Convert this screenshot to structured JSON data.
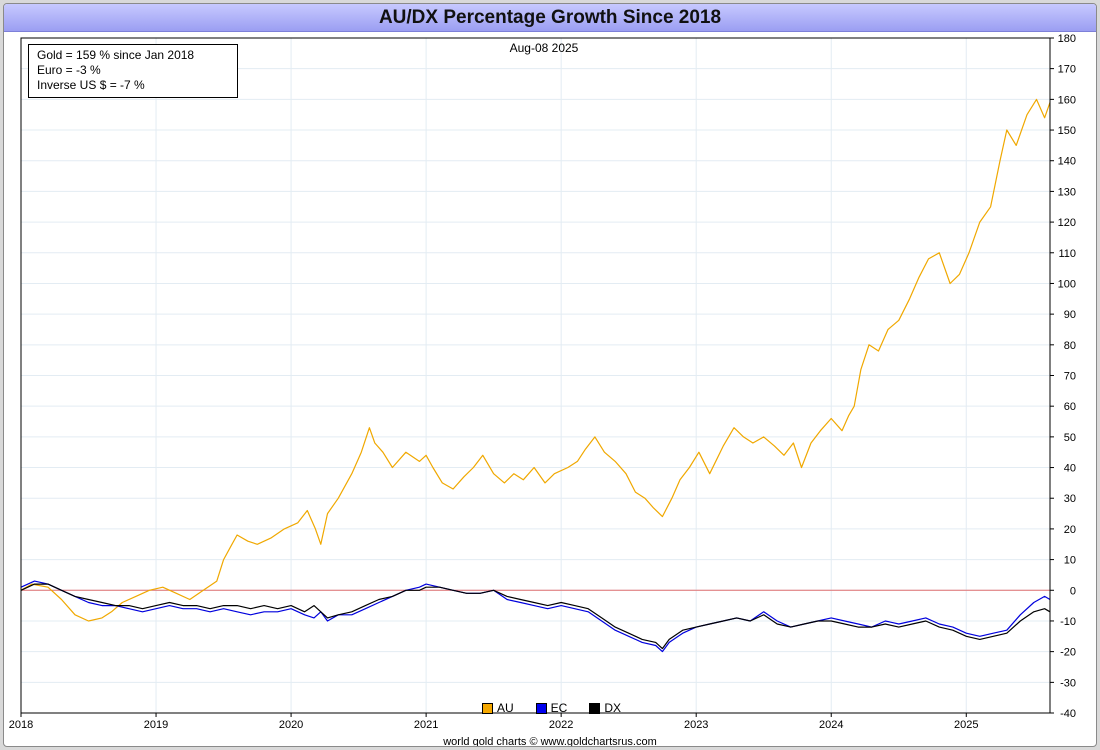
{
  "title": "AU/DX Percentage Growth Since 2018",
  "date_label": "Aug-08  2025",
  "stats": [
    "Gold = 159 % since Jan 2018",
    "Euro = -3 %",
    "Inverse US $ = -7 %"
  ],
  "legend": [
    {
      "label": "AU",
      "color": "#f5a800"
    },
    {
      "label": "EC",
      "color": "#0000ee"
    },
    {
      "label": "DX",
      "color": "#000000"
    }
  ],
  "footer": "world gold charts © www.goldchartsrus.com",
  "colors": {
    "gold": "#f0a800",
    "euro": "#0000dd",
    "dollar": "#000000",
    "zero_line": "#e07070",
    "grid": "#e3ecf3",
    "title_bar": "#a9acf5"
  },
  "chart_data": {
    "type": "line",
    "title": "AU/DX Percentage Growth Since 2018",
    "xlabel": "",
    "ylabel": "",
    "x_tick_labels": [
      "2018",
      "2019",
      "2020",
      "2021",
      "2022",
      "2023",
      "2024",
      "2025"
    ],
    "xlim": [
      2018.0,
      2025.62
    ],
    "ylim": [
      -40,
      180
    ],
    "y_ticks": [
      -40,
      -30,
      -20,
      -10,
      0,
      10,
      20,
      30,
      40,
      50,
      60,
      70,
      80,
      90,
      100,
      110,
      120,
      130,
      140,
      150,
      160,
      170,
      180
    ],
    "y_axis_side": "right",
    "reference_line": 0,
    "grid": true,
    "legend_position": "bottom-center",
    "series": [
      {
        "name": "AU",
        "color": "#f0a800",
        "x": [
          2018.0,
          2018.08,
          2018.2,
          2018.3,
          2018.4,
          2018.5,
          2018.6,
          2018.67,
          2018.75,
          2018.85,
          2018.95,
          2019.05,
          2019.15,
          2019.25,
          2019.35,
          2019.45,
          2019.5,
          2019.55,
          2019.6,
          2019.68,
          2019.75,
          2019.85,
          2019.95,
          2020.05,
          2020.12,
          2020.18,
          2020.22,
          2020.27,
          2020.35,
          2020.45,
          2020.52,
          2020.58,
          2020.62,
          2020.68,
          2020.75,
          2020.85,
          2020.95,
          2021.0,
          2021.05,
          2021.12,
          2021.2,
          2021.28,
          2021.35,
          2021.42,
          2021.5,
          2021.58,
          2021.65,
          2021.72,
          2021.8,
          2021.88,
          2021.95,
          2022.05,
          2022.12,
          2022.18,
          2022.25,
          2022.32,
          2022.4,
          2022.48,
          2022.55,
          2022.62,
          2022.68,
          2022.75,
          2022.82,
          2022.88,
          2022.95,
          2023.02,
          2023.1,
          2023.2,
          2023.28,
          2023.35,
          2023.42,
          2023.5,
          2023.58,
          2023.65,
          2023.72,
          2023.78,
          2023.85,
          2023.92,
          2024.0,
          2024.08,
          2024.13,
          2024.17,
          2024.22,
          2024.28,
          2024.35,
          2024.42,
          2024.5,
          2024.58,
          2024.65,
          2024.72,
          2024.8,
          2024.88,
          2024.95,
          2025.02,
          2025.1,
          2025.18,
          2025.25,
          2025.3,
          2025.37,
          2025.45,
          2025.52,
          2025.58,
          2025.62
        ],
        "y": [
          0,
          2,
          1,
          -3,
          -8,
          -10,
          -9,
          -7,
          -4,
          -2,
          0,
          1,
          -1,
          -3,
          0,
          3,
          10,
          14,
          18,
          16,
          15,
          17,
          20,
          22,
          26,
          20,
          15,
          25,
          30,
          38,
          45,
          53,
          48,
          45,
          40,
          45,
          42,
          44,
          40,
          35,
          33,
          37,
          40,
          44,
          38,
          35,
          38,
          36,
          40,
          35,
          38,
          40,
          42,
          46,
          50,
          45,
          42,
          38,
          32,
          30,
          27,
          24,
          30,
          36,
          40,
          45,
          38,
          47,
          53,
          50,
          48,
          50,
          47,
          44,
          48,
          40,
          48,
          52,
          56,
          52,
          57,
          60,
          72,
          80,
          78,
          85,
          88,
          95,
          102,
          108,
          110,
          100,
          103,
          110,
          120,
          125,
          140,
          150,
          145,
          155,
          160,
          154,
          159
        ]
      },
      {
        "name": "EC",
        "color": "#0000dd",
        "x": [
          2018.0,
          2018.1,
          2018.2,
          2018.3,
          2018.4,
          2018.5,
          2018.6,
          2018.7,
          2018.8,
          2018.9,
          2019.0,
          2019.1,
          2019.2,
          2019.3,
          2019.4,
          2019.5,
          2019.6,
          2019.7,
          2019.8,
          2019.9,
          2020.0,
          2020.1,
          2020.17,
          2020.22,
          2020.27,
          2020.35,
          2020.45,
          2020.55,
          2020.65,
          2020.75,
          2020.85,
          2020.95,
          2021.0,
          2021.1,
          2021.2,
          2021.3,
          2021.4,
          2021.5,
          2021.6,
          2021.7,
          2021.8,
          2021.9,
          2022.0,
          2022.1,
          2022.2,
          2022.3,
          2022.4,
          2022.5,
          2022.6,
          2022.7,
          2022.75,
          2022.8,
          2022.9,
          2023.0,
          2023.1,
          2023.2,
          2023.3,
          2023.4,
          2023.5,
          2023.6,
          2023.7,
          2023.8,
          2023.9,
          2024.0,
          2024.1,
          2024.2,
          2024.3,
          2024.4,
          2024.5,
          2024.6,
          2024.7,
          2024.8,
          2024.9,
          2025.0,
          2025.1,
          2025.2,
          2025.3,
          2025.4,
          2025.5,
          2025.58,
          2025.62
        ],
        "y": [
          1,
          3,
          2,
          0,
          -2,
          -4,
          -5,
          -5,
          -6,
          -7,
          -6,
          -5,
          -6,
          -6,
          -7,
          -6,
          -7,
          -8,
          -7,
          -7,
          -6,
          -8,
          -9,
          -7,
          -10,
          -8,
          -8,
          -6,
          -4,
          -2,
          0,
          1,
          2,
          1,
          0,
          -1,
          -1,
          0,
          -3,
          -4,
          -5,
          -6,
          -5,
          -6,
          -7,
          -10,
          -13,
          -15,
          -17,
          -18,
          -20,
          -17,
          -14,
          -12,
          -11,
          -10,
          -9,
          -10,
          -7,
          -10,
          -12,
          -11,
          -10,
          -9,
          -10,
          -11,
          -12,
          -10,
          -11,
          -10,
          -9,
          -11,
          -12,
          -14,
          -15,
          -14,
          -13,
          -8,
          -4,
          -2,
          -3
        ]
      },
      {
        "name": "DX",
        "color": "#000000",
        "x": [
          2018.0,
          2018.1,
          2018.2,
          2018.3,
          2018.4,
          2018.5,
          2018.6,
          2018.7,
          2018.8,
          2018.9,
          2019.0,
          2019.1,
          2019.2,
          2019.3,
          2019.4,
          2019.5,
          2019.6,
          2019.7,
          2019.8,
          2019.9,
          2020.0,
          2020.1,
          2020.17,
          2020.22,
          2020.27,
          2020.35,
          2020.45,
          2020.55,
          2020.65,
          2020.75,
          2020.85,
          2020.95,
          2021.0,
          2021.1,
          2021.2,
          2021.3,
          2021.4,
          2021.5,
          2021.6,
          2021.7,
          2021.8,
          2021.9,
          2022.0,
          2022.1,
          2022.2,
          2022.3,
          2022.4,
          2022.5,
          2022.6,
          2022.7,
          2022.75,
          2022.8,
          2022.9,
          2023.0,
          2023.1,
          2023.2,
          2023.3,
          2023.4,
          2023.5,
          2023.6,
          2023.7,
          2023.8,
          2023.9,
          2024.0,
          2024.1,
          2024.2,
          2024.3,
          2024.4,
          2024.5,
          2024.6,
          2024.7,
          2024.8,
          2024.9,
          2025.0,
          2025.1,
          2025.2,
          2025.3,
          2025.4,
          2025.5,
          2025.58,
          2025.62
        ],
        "y": [
          0,
          2,
          2,
          0,
          -2,
          -3,
          -4,
          -5,
          -5,
          -6,
          -5,
          -4,
          -5,
          -5,
          -6,
          -5,
          -5,
          -6,
          -5,
          -6,
          -5,
          -7,
          -5,
          -7,
          -9,
          -8,
          -7,
          -5,
          -3,
          -2,
          0,
          0,
          1,
          1,
          0,
          -1,
          -1,
          0,
          -2,
          -3,
          -4,
          -5,
          -4,
          -5,
          -6,
          -9,
          -12,
          -14,
          -16,
          -17,
          -19,
          -16,
          -13,
          -12,
          -11,
          -10,
          -9,
          -10,
          -8,
          -11,
          -12,
          -11,
          -10,
          -10,
          -11,
          -12,
          -12,
          -11,
          -12,
          -11,
          -10,
          -12,
          -13,
          -15,
          -16,
          -15,
          -14,
          -10,
          -7,
          -6,
          -7
        ]
      }
    ]
  }
}
